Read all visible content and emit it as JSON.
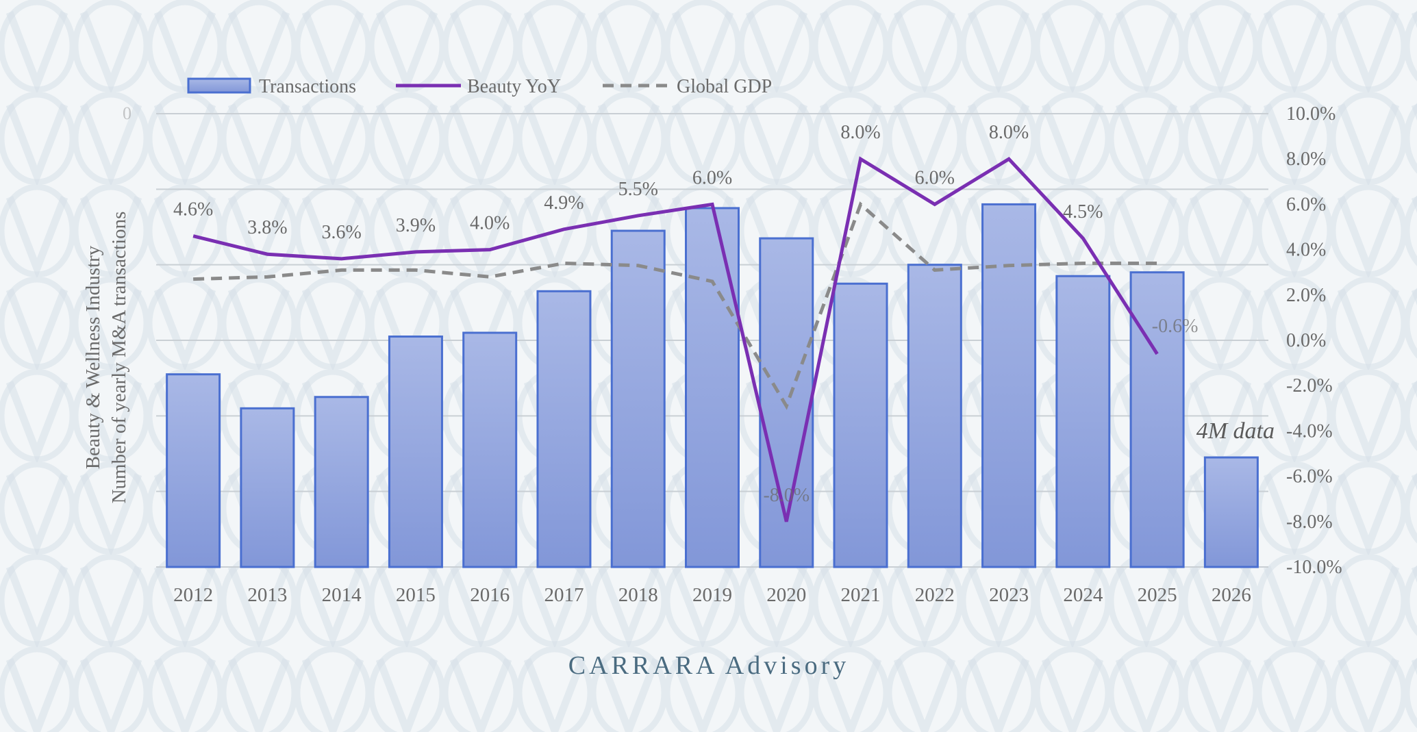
{
  "brand": {
    "name": "CARRARA  Advisory"
  },
  "colors": {
    "background": "#f3f6f8",
    "watermark": "#d5dfe7",
    "bar_fill_top": "#a9b8e6",
    "bar_fill_bottom": "#8297d8",
    "bar_stroke": "#4a6fd0",
    "beauty_line": "#7a2fb2",
    "gdp_line": "#8a8a8a",
    "grid": "#c9cfd4",
    "text": "#6a6a6a",
    "brand_text": "#4a6b80"
  },
  "chart_data": {
    "type": "bar",
    "categories": [
      "2012",
      "2013",
      "2014",
      "2015",
      "2016",
      "2017",
      "2018",
      "2019",
      "2020",
      "2021",
      "2022",
      "2023",
      "2024",
      "2025",
      "2026"
    ],
    "ylabel": "Beauty & Wellness Industry\nNumber of yearly M&A transactions",
    "y2lim": [
      -10,
      10
    ],
    "y2ticks": [
      "10.0%",
      "8.0%",
      "6.0%",
      "4.0%",
      "2.0%",
      "0.0%",
      "-2.0%",
      "-4.0%",
      "-6.0%",
      "-8.0%",
      "-10.0%"
    ],
    "ylim": [
      0,
      60
    ],
    "ytick_top_partial": "0",
    "grid": true,
    "legend": {
      "position": "top-left",
      "entries": [
        "Transactions",
        "Beauty YoY",
        "Global GDP"
      ]
    },
    "series": [
      {
        "name": "Transactions",
        "type": "bar",
        "axis": "left",
        "values": [
          25.5,
          21,
          22.5,
          30.5,
          31,
          36.5,
          44.5,
          47.5,
          43.5,
          37.5,
          40,
          48,
          38.5,
          39,
          14.5
        ]
      },
      {
        "name": "Beauty YoY",
        "type": "line",
        "axis": "right",
        "values": [
          4.6,
          3.8,
          3.6,
          3.9,
          4.0,
          4.9,
          5.5,
          6.0,
          -8.0,
          8.0,
          6.0,
          8.0,
          4.5,
          -0.6,
          null
        ],
        "labels": [
          "4.6%",
          "3.8%",
          "3.6%",
          "3.9%",
          "4.0%",
          "4.9%",
          "5.5%",
          "6.0%",
          "-8.0%",
          "8.0%",
          "6.0%",
          "8.0%",
          "4.5%",
          "-0.6%",
          ""
        ]
      },
      {
        "name": "Global GDP",
        "type": "line",
        "dash": true,
        "axis": "right",
        "values": [
          2.7,
          2.8,
          3.1,
          3.1,
          2.8,
          3.4,
          3.3,
          2.6,
          -2.9,
          6.0,
          3.1,
          3.3,
          3.4,
          3.4,
          null
        ]
      }
    ],
    "annotations": [
      {
        "category": "2026",
        "text": "4M data"
      }
    ]
  }
}
